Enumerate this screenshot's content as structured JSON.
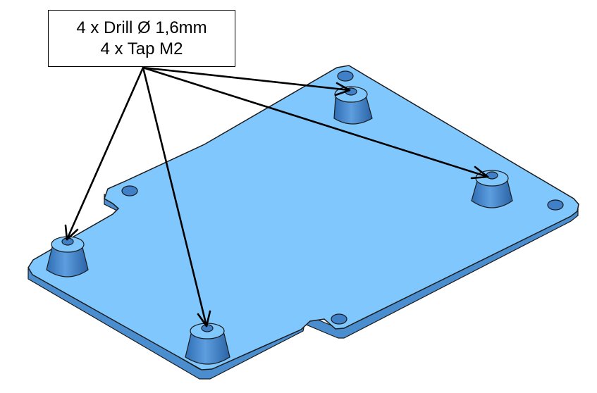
{
  "callout": {
    "line1": "4 x Drill Ø 1,6mm",
    "line2": "4 x Tap M2"
  },
  "colors": {
    "plate_top": "#80c7fd",
    "plate_side": "#4b8ed0",
    "boss": "#3f80c8",
    "edge": "#1b1b1b",
    "arrow": "#000000"
  }
}
